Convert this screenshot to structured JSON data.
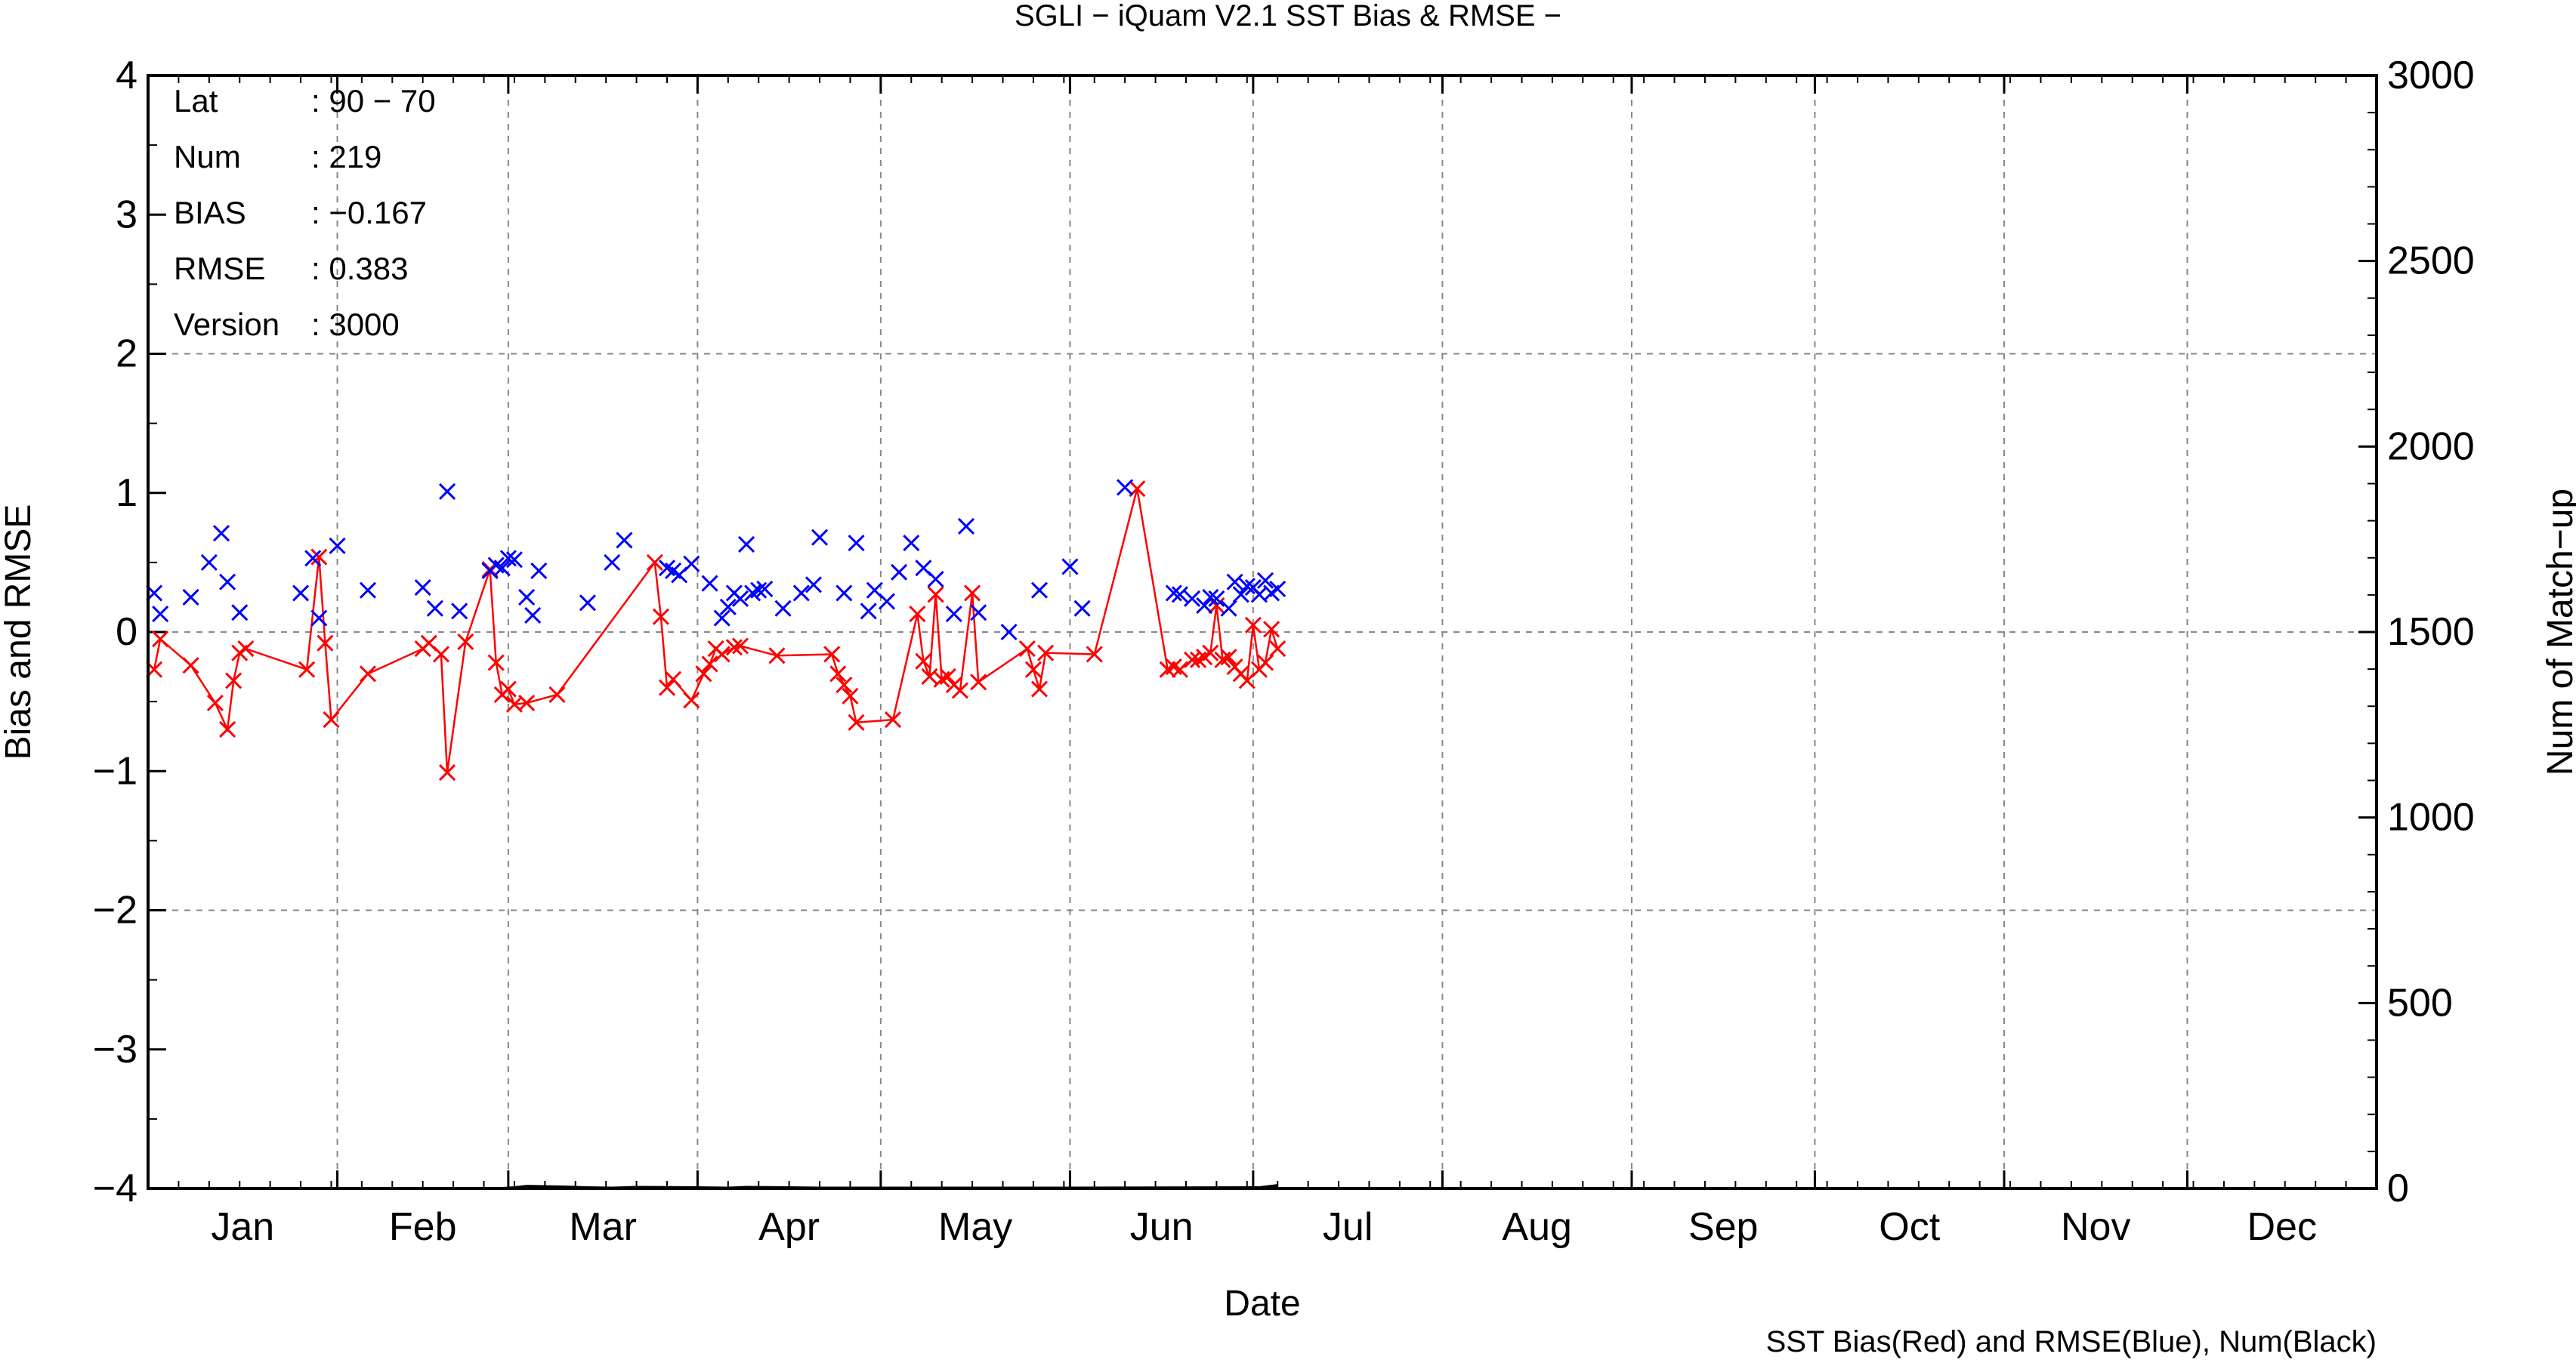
{
  "chart_data": {
    "type": "scatter",
    "title": "SGLI − iQuam V2.1 SST Bias & RMSE  −",
    "xlabel": "Date",
    "ylabel": "Bias and RMSE",
    "y2label": "Num of Match−up",
    "footnote": "SST Bias(Red) and RMSE(Blue), Num(Black)",
    "x_categories": [
      "Jan",
      "Feb",
      "Mar",
      "Apr",
      "May",
      "Jun",
      "Jul",
      "Aug",
      "Sep",
      "Oct",
      "Nov",
      "Dec"
    ],
    "xlim_days": [
      0,
      365
    ],
    "ylim": [
      -4,
      4
    ],
    "y_ticks": [
      "−4",
      "−3",
      "−2",
      "−1",
      "0",
      "1",
      "2",
      "3",
      "4"
    ],
    "y2lim": [
      0,
      3000
    ],
    "y2_ticks": [
      "0",
      "500",
      "1000",
      "1500",
      "2000",
      "2500",
      "3000"
    ],
    "grid": true,
    "colors": {
      "bias": "#ff0000",
      "rmse": "#0000ff",
      "num": "#000000",
      "grid": "#888888"
    },
    "info": [
      {
        "label": "Lat",
        "value": ": 90 − 70"
      },
      {
        "label": "Num",
        "value": ": 219"
      },
      {
        "label": "BIAS",
        "value": ": −0.167"
      },
      {
        "label": "RMSE",
        "value": ": 0.383"
      },
      {
        "label": "Version",
        "value": ": 3000"
      }
    ],
    "series": [
      {
        "name": "SST Bias",
        "color": "#ff0000",
        "style": "line+x",
        "x": [
          1,
          2,
          7,
          11,
          13,
          14,
          15,
          16,
          26,
          28,
          29,
          30,
          36,
          45,
          46,
          48,
          49,
          52,
          56,
          57,
          58,
          59,
          60,
          62,
          67,
          83,
          84,
          85,
          86,
          89,
          91,
          92,
          93,
          94,
          96,
          97,
          103,
          112,
          113,
          114,
          115,
          116,
          122,
          126,
          127,
          128,
          129,
          130,
          131,
          132,
          133,
          135,
          136,
          144,
          145,
          146,
          147,
          155,
          162,
          167,
          168,
          169,
          171,
          172,
          173,
          174,
          175,
          176,
          177,
          178,
          179,
          180,
          181,
          182,
          183,
          184,
          185
        ],
        "y": [
          -0.27,
          -0.05,
          -0.24,
          -0.51,
          -0.7,
          -0.35,
          -0.15,
          -0.12,
          -0.27,
          0.54,
          -0.08,
          -0.63,
          -0.3,
          -0.12,
          -0.08,
          -0.16,
          -1.01,
          -0.07,
          0.45,
          -0.22,
          -0.45,
          -0.41,
          -0.52,
          -0.51,
          -0.45,
          0.5,
          0.11,
          -0.4,
          -0.34,
          -0.49,
          -0.3,
          -0.23,
          -0.12,
          -0.16,
          -0.11,
          -0.1,
          -0.17,
          -0.16,
          -0.3,
          -0.38,
          -0.46,
          -0.65,
          -0.63,
          0.13,
          -0.21,
          -0.32,
          0.27,
          -0.34,
          -0.32,
          -0.38,
          -0.42,
          0.28,
          -0.36,
          -0.12,
          -0.27,
          -0.41,
          -0.15,
          -0.16,
          1.03,
          -0.27,
          -0.25,
          -0.27,
          -0.2,
          -0.2,
          -0.18,
          -0.15,
          0.19,
          -0.2,
          -0.18,
          -0.25,
          -0.3,
          -0.35,
          0.05,
          -0.27,
          -0.22,
          0.02,
          -0.12
        ]
      },
      {
        "name": "SST RMSE",
        "color": "#0000ff",
        "style": "x",
        "x": [
          1,
          2,
          7,
          10,
          12,
          13,
          15,
          25,
          27,
          28,
          31,
          36,
          45,
          47,
          49,
          51,
          56,
          57,
          58,
          59,
          60,
          62,
          63,
          64,
          72,
          76,
          78,
          85,
          86,
          87,
          89,
          92,
          94,
          95,
          96,
          97,
          98,
          99,
          100,
          101,
          104,
          107,
          109,
          110,
          114,
          116,
          118,
          119,
          121,
          123,
          125,
          127,
          129,
          132,
          134,
          136,
          141,
          146,
          151,
          153,
          160,
          168,
          169,
          171,
          173,
          174,
          175,
          177,
          178,
          179,
          180,
          181,
          182,
          183,
          184,
          185
        ],
        "y": [
          0.28,
          0.13,
          0.25,
          0.5,
          0.71,
          0.36,
          0.14,
          0.28,
          0.53,
          0.1,
          0.62,
          0.3,
          0.32,
          0.17,
          1.01,
          0.15,
          0.44,
          0.48,
          0.46,
          0.53,
          0.52,
          0.25,
          0.12,
          0.44,
          0.21,
          0.5,
          0.66,
          0.46,
          0.44,
          0.41,
          0.49,
          0.35,
          0.1,
          0.18,
          0.28,
          0.24,
          0.63,
          0.28,
          0.3,
          0.31,
          0.17,
          0.28,
          0.34,
          0.68,
          0.28,
          0.64,
          0.15,
          0.3,
          0.22,
          0.43,
          0.64,
          0.46,
          0.38,
          0.13,
          0.76,
          0.14,
          0.0,
          0.3,
          0.47,
          0.17,
          1.04,
          0.28,
          0.27,
          0.24,
          0.19,
          0.25,
          0.24,
          0.17,
          0.36,
          0.27,
          0.33,
          0.32,
          0.27,
          0.37,
          0.28,
          0.31
        ]
      },
      {
        "name": "Num",
        "color": "#000000",
        "style": "line",
        "axis": "y2",
        "x": [
          58,
          60,
          62,
          68,
          72,
          76,
          80,
          90,
          95,
          98,
          105,
          110,
          150,
          182,
          185
        ],
        "y": [
          0,
          2,
          6,
          4,
          2,
          1,
          3,
          2,
          1,
          3,
          2,
          1,
          1,
          2,
          8
        ]
      }
    ]
  }
}
